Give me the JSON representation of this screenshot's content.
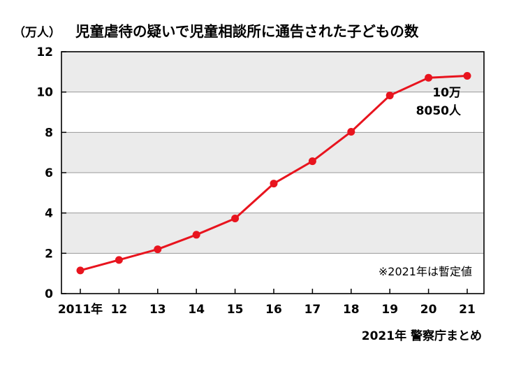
{
  "chart_data": {
    "type": "line",
    "title": "児童虐待の疑いで児童相談所に通告された子どもの数",
    "unit_label": "（万人）",
    "categories": [
      "2011年",
      "12",
      "13",
      "14",
      "15",
      "16",
      "17",
      "18",
      "19",
      "20",
      "21"
    ],
    "y_ticks": [
      "0",
      "2",
      "4",
      "6",
      "8",
      "10",
      "12"
    ],
    "ylim": [
      0,
      12
    ],
    "series": [
      {
        "values": [
          1.15,
          1.67,
          2.2,
          2.92,
          3.73,
          5.46,
          6.57,
          8.03,
          9.83,
          10.71,
          10.805
        ]
      }
    ],
    "callout_line1": "10万",
    "callout_line2": "8050人",
    "note": "※2021年は暫定値",
    "source": "2021年 警察庁まとめ",
    "grid": "horizontal",
    "colors": {
      "line": "#e8141e",
      "band": "#ebebeb",
      "gridline": "#999999",
      "frame": "#000000"
    }
  }
}
